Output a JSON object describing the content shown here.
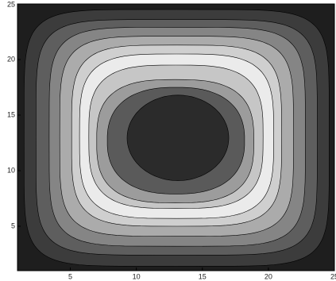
{
  "chart_data": {
    "type": "contourf",
    "xlim": [
      1,
      25
    ],
    "ylim": [
      1,
      25
    ],
    "xticks": [
      5,
      10,
      15,
      20,
      25
    ],
    "yticks": [
      5,
      10,
      15,
      20,
      25
    ],
    "background": "#1e1e1e",
    "regions": [
      {
        "x": [
          1.5,
          24.6
        ],
        "y": [
          1.4,
          24.5
        ],
        "color": "#3c3c3c"
      },
      {
        "x": [
          2.4,
          23.7
        ],
        "y": [
          2.4,
          23.6
        ],
        "color": "#5e5e5e"
      },
      {
        "x": [
          3.4,
          22.8
        ],
        "y": [
          3.2,
          22.9
        ],
        "color": "#858585"
      },
      {
        "x": [
          4.2,
          21.9
        ],
        "y": [
          4.1,
          22.1
        ],
        "color": "#ababab"
      },
      {
        "x": [
          5.1,
          21.0
        ],
        "y": [
          5.0,
          21.3
        ],
        "color": "#cfcfcf"
      },
      {
        "x": [
          5.7,
          20.4
        ],
        "y": [
          5.7,
          20.5
        ],
        "color": "#ebebeb"
      },
      {
        "x": [
          6.4,
          19.6
        ],
        "y": [
          6.6,
          19.5
        ],
        "color": "#c6c6c6"
      },
      {
        "x": [
          7.0,
          18.9
        ],
        "y": [
          7.1,
          18.2
        ],
        "color": "#9c9c9c"
      },
      {
        "x": [
          7.8,
          18.2
        ],
        "y": [
          7.9,
          17.5
        ],
        "color": "#5a5a5a"
      },
      {
        "x": [
          9.3,
          17.0
        ],
        "y": [
          9.1,
          16.8
        ],
        "color": "#2b2b2b"
      }
    ]
  }
}
